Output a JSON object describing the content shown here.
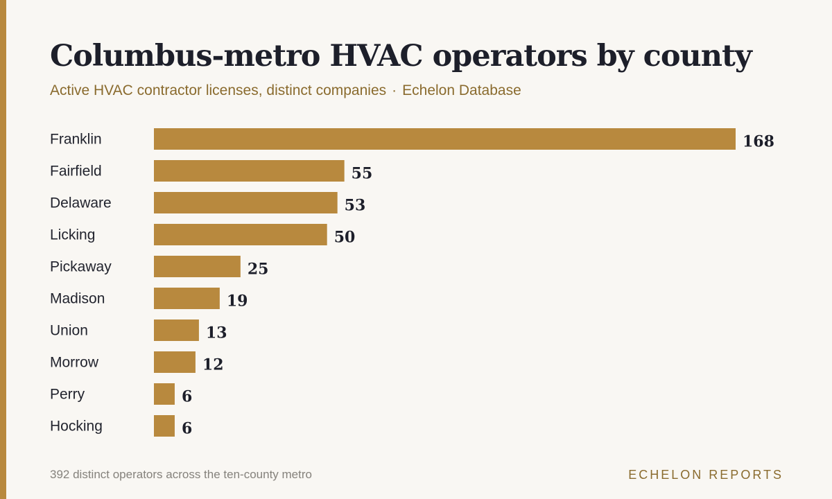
{
  "header": {
    "title": "Columbus-metro HVAC operators by county",
    "subtitle_main": "Active HVAC contractor licenses, distinct companies",
    "subtitle_sep": "·",
    "subtitle_source": "Echelon Database"
  },
  "footer": {
    "note": "392 distinct operators across the ten-county metro",
    "brand": "ECHELON REPORTS"
  },
  "colors": {
    "accent": "#b8893e",
    "background": "#f9f7f3",
    "title": "#1d1f2a",
    "subtitle": "#8a6b2e"
  },
  "chart_data": {
    "type": "bar",
    "orientation": "horizontal",
    "title": "Columbus-metro HVAC operators by county",
    "categories": [
      "Franklin",
      "Fairfield",
      "Delaware",
      "Licking",
      "Pickaway",
      "Madison",
      "Union",
      "Morrow",
      "Perry",
      "Hocking"
    ],
    "values": [
      168,
      55,
      53,
      50,
      25,
      19,
      13,
      12,
      6,
      6
    ],
    "xlim": [
      0,
      168
    ],
    "grid": false,
    "legend": "none",
    "data_labels": true
  }
}
